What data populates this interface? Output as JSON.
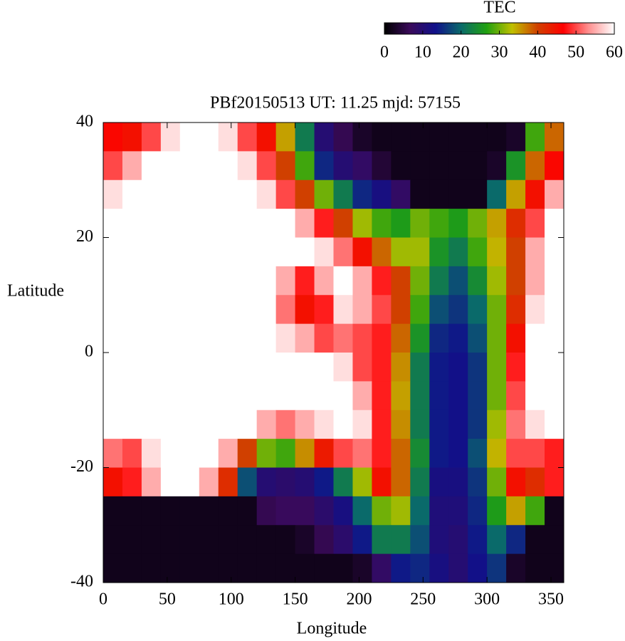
{
  "chart_data": {
    "type": "heatmap",
    "title": "PBf20150513  UT: 11.25  mjd: 57155",
    "x_label": "Longitude",
    "y_label": "Latitude",
    "colorbar_label": "TEC",
    "x": [
      7.5,
      22.5,
      37.5,
      52.5,
      67.5,
      82.5,
      97.5,
      112.5,
      127.5,
      142.5,
      157.5,
      172.5,
      187.5,
      202.5,
      217.5,
      232.5,
      247.5,
      262.5,
      277.5,
      292.5,
      307.5,
      322.5,
      337.5,
      352.5
    ],
    "y": [
      37.5,
      32.5,
      27.5,
      22.5,
      17.5,
      12.5,
      7.5,
      2.5,
      -2.5,
      -7.5,
      -12.5,
      -17.5,
      -22.5,
      -27.5,
      -32.5,
      -37.5
    ],
    "z": [
      [
        46,
        45,
        50,
        58,
        60,
        60,
        58,
        50,
        45,
        35,
        22,
        10,
        6,
        3,
        2,
        2,
        2,
        2,
        2,
        2,
        2,
        3,
        28,
        38
      ],
      [
        50,
        55,
        60,
        60,
        60,
        60,
        60,
        58,
        50,
        40,
        28,
        15,
        10,
        8,
        4,
        2,
        2,
        2,
        2,
        2,
        3,
        25,
        38,
        46
      ],
      [
        58,
        60,
        60,
        60,
        60,
        60,
        60,
        60,
        58,
        50,
        40,
        30,
        22,
        15,
        12,
        8,
        2,
        2,
        2,
        2,
        20,
        35,
        45,
        55
      ],
      [
        60,
        60,
        60,
        60,
        60,
        60,
        60,
        60,
        60,
        60,
        55,
        48,
        40,
        32,
        28,
        26,
        30,
        28,
        26,
        30,
        35,
        42,
        50,
        60
      ],
      [
        60,
        60,
        60,
        60,
        60,
        60,
        60,
        60,
        60,
        60,
        60,
        58,
        52,
        45,
        38,
        32,
        32,
        25,
        22,
        28,
        34,
        40,
        55,
        60
      ],
      [
        60,
        60,
        60,
        60,
        60,
        60,
        60,
        60,
        60,
        55,
        48,
        55,
        60,
        55,
        48,
        40,
        30,
        22,
        18,
        24,
        32,
        40,
        55,
        60
      ],
      [
        60,
        60,
        60,
        60,
        60,
        60,
        60,
        60,
        60,
        52,
        45,
        48,
        58,
        55,
        50,
        40,
        28,
        18,
        16,
        20,
        30,
        42,
        58,
        60
      ],
      [
        60,
        60,
        60,
        60,
        60,
        60,
        60,
        60,
        60,
        58,
        55,
        50,
        52,
        50,
        48,
        38,
        25,
        15,
        14,
        18,
        30,
        45,
        60,
        60
      ],
      [
        60,
        60,
        60,
        60,
        60,
        60,
        60,
        60,
        60,
        60,
        60,
        60,
        58,
        50,
        48,
        36,
        22,
        14,
        13,
        16,
        30,
        48,
        60,
        60
      ],
      [
        60,
        60,
        60,
        60,
        60,
        60,
        60,
        60,
        60,
        60,
        60,
        60,
        60,
        55,
        48,
        35,
        22,
        14,
        13,
        16,
        30,
        50,
        60,
        60
      ],
      [
        60,
        60,
        60,
        60,
        60,
        60,
        60,
        60,
        55,
        52,
        55,
        58,
        60,
        58,
        48,
        36,
        22,
        14,
        13,
        16,
        32,
        52,
        58,
        60
      ],
      [
        52,
        50,
        58,
        60,
        60,
        60,
        55,
        40,
        30,
        28,
        36,
        44,
        50,
        52,
        48,
        38,
        24,
        14,
        13,
        18,
        34,
        50,
        50,
        48
      ],
      [
        45,
        48,
        55,
        60,
        60,
        55,
        42,
        18,
        10,
        9,
        10,
        14,
        22,
        32,
        45,
        38,
        22,
        12,
        12,
        16,
        30,
        45,
        42,
        48
      ],
      [
        2,
        2,
        2,
        2,
        2,
        2,
        2,
        2,
        6,
        7,
        7,
        9,
        12,
        20,
        30,
        32,
        20,
        11,
        11,
        15,
        26,
        35,
        28,
        2
      ],
      [
        2,
        2,
        2,
        2,
        2,
        2,
        2,
        2,
        2,
        2,
        3,
        6,
        9,
        14,
        22,
        22,
        18,
        11,
        10,
        14,
        20,
        15,
        2,
        2
      ],
      [
        2,
        2,
        2,
        2,
        2,
        2,
        2,
        2,
        2,
        2,
        2,
        2,
        2,
        3,
        8,
        14,
        15,
        12,
        10,
        13,
        16,
        3,
        2,
        2
      ]
    ],
    "xlim": [
      0,
      360
    ],
    "xticks": [
      0,
      50,
      100,
      150,
      200,
      250,
      300,
      350
    ],
    "ylim": [
      -40,
      40
    ],
    "yticks": [
      -40,
      -20,
      0,
      20,
      40
    ],
    "clim": [
      0,
      60
    ],
    "cticks": [
      0,
      10,
      20,
      30,
      40,
      50,
      60
    ],
    "colormap": [
      "#000000",
      "#3a0a5a",
      "#10108a",
      "#0a6a6a",
      "#20a010",
      "#c0c000",
      "#d04000",
      "#ff0000",
      "#ff9090",
      "#ffffff"
    ]
  }
}
